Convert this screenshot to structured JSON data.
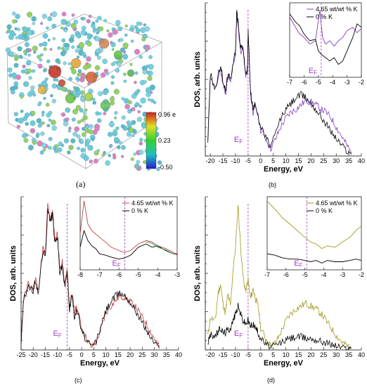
{
  "chart_data": [
    {
      "type": "scatter",
      "panel_label": "(a)",
      "description_kind": "3D atomic structure render",
      "colorbar": {
        "max_label": "0.96 e",
        "mid_label": "0.23",
        "min_label": "-0.50",
        "colors": [
          "#2020d0",
          "#20c0c0",
          "#30d030",
          "#e0e020",
          "#d02020"
        ]
      }
    },
    {
      "type": "line",
      "panel_label": "(b)",
      "ylabel": "DOS, arb. units",
      "xlabel": "Energy, eV",
      "xticks": [
        -20,
        -15,
        -10,
        -5,
        0,
        5,
        10,
        15,
        20,
        25,
        30,
        35,
        40
      ],
      "xlim": [
        -22,
        40
      ],
      "ef_label": "E",
      "ef_sub": "F",
      "ef_x": -5,
      "series": [
        {
          "name": "4.65 wt/wt % K",
          "color": "#8040c0",
          "x": [
            -21,
            -20,
            -18,
            -16,
            -15,
            -14,
            -13,
            -12,
            -11,
            -10,
            -9.5,
            -9,
            -8,
            -7,
            -6,
            -5.2,
            -5,
            -4,
            -3,
            -2,
            0,
            2,
            4,
            6,
            8,
            10,
            12,
            14,
            16,
            18,
            20,
            22,
            24,
            26,
            28,
            30,
            32,
            34,
            36
          ],
          "y": [
            0.1,
            0.55,
            0.45,
            0.6,
            0.5,
            0.42,
            0.55,
            0.5,
            0.62,
            0.7,
            0.98,
            0.9,
            0.72,
            0.74,
            0.55,
            0.58,
            0.85,
            0.42,
            0.3,
            0.35,
            0.18,
            0.12,
            0.05,
            0.12,
            0.2,
            0.26,
            0.3,
            0.32,
            0.35,
            0.38,
            0.37,
            0.35,
            0.32,
            0.3,
            0.26,
            0.2,
            0.14,
            0.08,
            0.02
          ]
        },
        {
          "name": "0 % K",
          "color": "#000000",
          "x": [
            -21,
            -20,
            -18,
            -16,
            -15,
            -14,
            -13,
            -12,
            -11,
            -10,
            -9.5,
            -9,
            -8,
            -7,
            -6,
            -5.2,
            -5,
            -4,
            -3,
            -2,
            0,
            2,
            4,
            6,
            8,
            10,
            12,
            14,
            16,
            18,
            20,
            22,
            24,
            26,
            28,
            30,
            32,
            34,
            36
          ],
          "y": [
            0.1,
            0.56,
            0.46,
            0.62,
            0.52,
            0.44,
            0.56,
            0.52,
            0.64,
            0.72,
            1.0,
            0.92,
            0.74,
            0.75,
            0.56,
            0.6,
            0.86,
            0.44,
            0.32,
            0.36,
            0.2,
            0.13,
            0.06,
            0.16,
            0.26,
            0.32,
            0.36,
            0.4,
            0.42,
            0.4,
            0.36,
            0.32,
            0.27,
            0.22,
            0.17,
            0.12,
            0.08,
            0.04,
            0.01
          ]
        }
      ],
      "inset": {
        "xticks": [
          -7,
          -6,
          -5,
          -4,
          -3,
          -2
        ],
        "xlim": [
          -7,
          -2
        ],
        "ef_x": -4.8,
        "legend": [
          "4.65 wt/wt % K",
          "0 % K"
        ],
        "series": [
          {
            "name": "4.65 wt/wt % K",
            "color": "#8040c0",
            "x": [
              -7,
              -6.6,
              -6.3,
              -6,
              -5.6,
              -5.2,
              -4.9,
              -4.7,
              -4.5,
              -4.2,
              -3.9,
              -3.6,
              -3.3,
              -3,
              -2.6,
              -2.3,
              -2
            ],
            "y": [
              0.85,
              0.7,
              0.6,
              0.55,
              0.45,
              0.5,
              0.95,
              0.55,
              0.45,
              0.5,
              0.42,
              0.5,
              0.55,
              0.65,
              0.7,
              0.62,
              0.68
            ]
          },
          {
            "name": "0 % K",
            "color": "#000000",
            "x": [
              -7,
              -6.6,
              -6.3,
              -6,
              -5.6,
              -5.2,
              -5,
              -4.8,
              -4.5,
              -4.2,
              -3.9,
              -3.6,
              -3.3,
              -3,
              -2.6,
              -2.3,
              -2
            ],
            "y": [
              0.9,
              0.78,
              0.72,
              0.6,
              0.5,
              0.52,
              0.35,
              0.3,
              0.25,
              0.2,
              0.25,
              0.15,
              0.2,
              0.35,
              0.55,
              0.75,
              0.7
            ]
          }
        ]
      }
    },
    {
      "type": "line",
      "panel_label": "(c)",
      "ylabel": "DOS, arb. units",
      "xlabel": "Energy, eV",
      "xticks": [
        -25,
        -20,
        -15,
        -10,
        -5,
        0,
        5,
        10,
        15,
        20,
        25,
        30,
        35,
        40
      ],
      "xlim": [
        -25,
        40
      ],
      "ef_label": "E",
      "ef_sub": "F",
      "ef_x": -6,
      "series": [
        {
          "name": "4.65 wt/wt % K",
          "color": "#c04040",
          "x": [
            -25,
            -24,
            -22,
            -20,
            -19,
            -18,
            -16,
            -15,
            -14,
            -13,
            -12,
            -11,
            -10,
            -9,
            -8,
            -7,
            -6,
            -5,
            -4,
            -3,
            -2,
            0,
            2,
            4,
            6,
            8,
            10,
            12,
            14,
            16,
            18,
            20,
            22,
            24,
            26,
            28,
            30,
            32
          ],
          "y": [
            0.05,
            0.35,
            0.45,
            0.42,
            0.5,
            0.4,
            0.7,
            0.65,
            1.0,
            0.9,
            0.95,
            0.75,
            0.8,
            0.55,
            0.6,
            0.45,
            0.55,
            0.3,
            0.4,
            0.25,
            0.3,
            0.15,
            0.08,
            0.02,
            0.05,
            0.15,
            0.25,
            0.3,
            0.34,
            0.37,
            0.36,
            0.33,
            0.3,
            0.25,
            0.2,
            0.14,
            0.08,
            0.02
          ]
        },
        {
          "name": "0 % K",
          "color": "#000000",
          "x": [
            -25,
            -24,
            -22,
            -20,
            -19,
            -18,
            -16,
            -15,
            -14,
            -13,
            -12,
            -11,
            -10,
            -9,
            -8,
            -7,
            -6,
            -5,
            -4,
            -3,
            -2,
            0,
            2,
            4,
            6,
            8,
            10,
            12,
            14,
            16,
            18,
            20,
            22,
            24,
            26,
            28,
            30,
            32
          ],
          "y": [
            0.05,
            0.34,
            0.44,
            0.4,
            0.48,
            0.38,
            0.68,
            0.63,
            0.98,
            0.88,
            0.93,
            0.73,
            0.78,
            0.53,
            0.58,
            0.43,
            0.53,
            0.28,
            0.38,
            0.23,
            0.28,
            0.13,
            0.06,
            0.02,
            0.06,
            0.16,
            0.27,
            0.33,
            0.37,
            0.39,
            0.37,
            0.33,
            0.28,
            0.22,
            0.16,
            0.1,
            0.05,
            0.01
          ]
        }
      ],
      "inset": {
        "xticks": [
          -8,
          -7,
          -6,
          -5,
          -4,
          -3
        ],
        "xlim": [
          -8,
          -3
        ],
        "ef_x": -5.7,
        "legend": [
          "4.65 wt/wt % K",
          "0 % K"
        ],
        "series": [
          {
            "name": "4.65 wt/wt % K",
            "color": "#c04040",
            "x": [
              -8,
              -7.8,
              -7.6,
              -7.4,
              -7.2,
              -7,
              -6.7,
              -6.4,
              -6,
              -5.7,
              -5.4,
              -5,
              -4.6,
              -4.3,
              -4,
              -3.6,
              -3.2,
              -3
            ],
            "y": [
              0.5,
              1.0,
              0.65,
              0.55,
              0.5,
              0.45,
              0.38,
              0.3,
              0.25,
              0.22,
              0.25,
              0.35,
              0.4,
              0.38,
              0.32,
              0.28,
              0.22,
              0.18
            ]
          },
          {
            "name": "0 % K",
            "color": "#000000",
            "x": [
              -8,
              -7.8,
              -7.6,
              -7.4,
              -7.2,
              -7,
              -6.7,
              -6.4,
              -6,
              -5.7,
              -5.4,
              -5,
              -4.6,
              -4.3,
              -4,
              -3.6,
              -3.2,
              -3
            ],
            "y": [
              0.3,
              0.55,
              0.4,
              0.32,
              0.28,
              0.2,
              0.18,
              0.15,
              0.12,
              0.14,
              0.18,
              0.3,
              0.35,
              0.3,
              0.32,
              0.25,
              0.2,
              0.2
            ]
          },
          {
            "name": "",
            "color": "#30a050",
            "x": [
              -4.6,
              -4.3,
              -4,
              -3.6,
              -3.2
            ],
            "y": [
              0.38,
              0.36,
              0.3,
              0.26,
              0.2
            ]
          }
        ]
      }
    },
    {
      "type": "line",
      "panel_label": "(d)",
      "ylabel": "DOS, arb. units",
      "xlabel": "Energy, eV",
      "xticks": [
        -20,
        -15,
        -10,
        -5,
        0,
        5,
        10,
        15,
        20,
        25,
        30,
        35,
        40
      ],
      "xlim": [
        -22,
        40
      ],
      "ef_label": "E",
      "ef_sub": "F",
      "ef_x": -5,
      "series": [
        {
          "name": "4.65 wt/wt % K",
          "color": "#a09a20",
          "x": [
            -21,
            -20,
            -18,
            -17,
            -16,
            -15,
            -14,
            -13,
            -12,
            -11,
            -10,
            -9,
            -8,
            -7,
            -6,
            -5,
            -4,
            -3,
            -2,
            -1,
            0,
            2,
            4,
            6,
            8,
            10,
            12,
            14,
            16,
            18,
            20,
            22,
            24,
            26,
            28,
            30,
            32,
            34,
            36
          ],
          "y": [
            0.1,
            0.22,
            0.2,
            0.38,
            0.45,
            0.32,
            0.25,
            0.38,
            0.3,
            0.55,
            0.7,
            1.0,
            0.72,
            0.5,
            0.4,
            0.48,
            0.35,
            0.42,
            0.35,
            0.3,
            0.15,
            0.08,
            0.03,
            0.05,
            0.12,
            0.2,
            0.25,
            0.28,
            0.3,
            0.32,
            0.3,
            0.28,
            0.25,
            0.2,
            0.15,
            0.1,
            0.06,
            0.03,
            0.01
          ]
        },
        {
          "name": "0 % K",
          "color": "#000000",
          "x": [
            -21,
            -20,
            -18,
            -17,
            -16,
            -15,
            -14,
            -13,
            -12,
            -11,
            -10,
            -9,
            -8,
            -7,
            -6,
            -5,
            -4,
            -3,
            -2,
            -1,
            0,
            2,
            4,
            6,
            8,
            10,
            12,
            14,
            16,
            18,
            20,
            22,
            24,
            26,
            28,
            30,
            32,
            34,
            36
          ],
          "y": [
            0.05,
            0.1,
            0.1,
            0.12,
            0.15,
            0.12,
            0.12,
            0.14,
            0.15,
            0.2,
            0.25,
            0.3,
            0.25,
            0.2,
            0.18,
            0.2,
            0.16,
            0.18,
            0.15,
            0.12,
            0.08,
            0.04,
            0.02,
            0.03,
            0.05,
            0.07,
            0.08,
            0.09,
            0.09,
            0.08,
            0.08,
            0.07,
            0.06,
            0.05,
            0.04,
            0.03,
            0.02,
            0.01,
            0.01
          ]
        }
      ],
      "inset": {
        "xticks": [
          -7,
          -6,
          -5,
          -4,
          -3,
          -2
        ],
        "xlim": [
          -7,
          -2
        ],
        "ef_x": -4.9,
        "legend": [
          "4.65 wt/wt % K",
          "0 % K"
        ],
        "series": [
          {
            "name": "4.65 wt/wt % K",
            "color": "#a09a20",
            "x": [
              -7,
              -6.6,
              -6.2,
              -5.8,
              -5.4,
              -5,
              -4.7,
              -4.4,
              -4.1,
              -3.8,
              -3.4,
              -3,
              -2.6,
              -2.3,
              -2
            ],
            "y": [
              1.0,
              0.88,
              0.75,
              0.65,
              0.55,
              0.45,
              0.38,
              0.35,
              0.28,
              0.32,
              0.3,
              0.38,
              0.45,
              0.55,
              0.62
            ]
          },
          {
            "name": "0 % K",
            "color": "#000000",
            "x": [
              -7,
              -6.6,
              -6.2,
              -5.8,
              -5.4,
              -5,
              -4.7,
              -4.4,
              -4.1,
              -3.8,
              -3.4,
              -3,
              -2.6,
              -2.3,
              -2
            ],
            "y": [
              0.2,
              0.18,
              0.14,
              0.12,
              0.12,
              0.1,
              0.08,
              0.1,
              0.06,
              0.1,
              0.08,
              0.08,
              0.1,
              0.12,
              0.1
            ]
          }
        ]
      }
    }
  ]
}
